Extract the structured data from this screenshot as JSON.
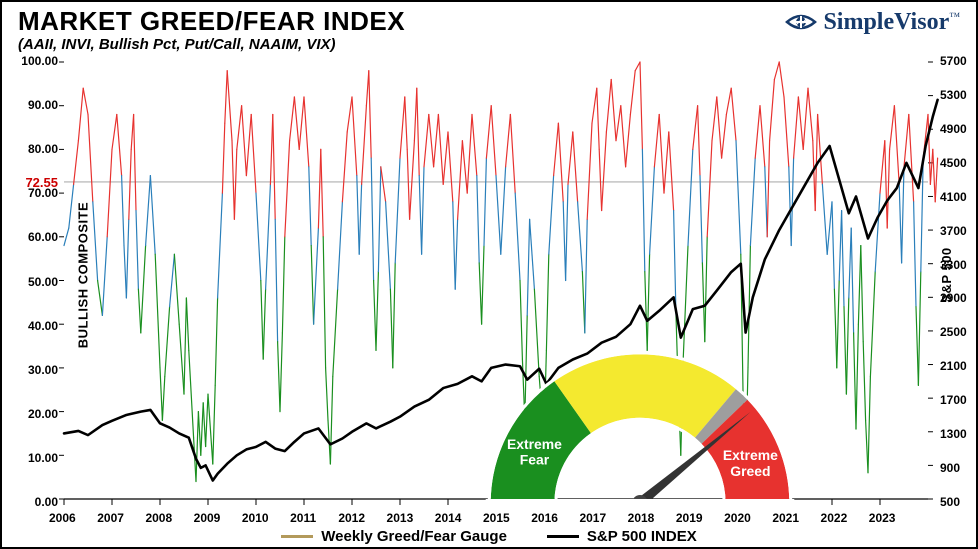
{
  "header": {
    "title": "MARKET GREED/FEAR INDEX",
    "subtitle": "(AAII, INVI, Bullish Pct, Put/Call, NAAIM, VIX)",
    "brand_name": "SimpleVisor"
  },
  "axes": {
    "x": {
      "label": "",
      "ticks": [
        "2006",
        "2007",
        "2008",
        "2009",
        "2010",
        "2011",
        "2012",
        "2013",
        "2014",
        "2015",
        "2016",
        "2017",
        "2018",
        "2019",
        "2020",
        "2021",
        "2022",
        "2023"
      ],
      "min": 2006,
      "max": 2024
    },
    "y_left": {
      "label": "BULLISH COMPOSITE",
      "min": 0,
      "max": 100,
      "ticks": [
        "0.00",
        "10.00",
        "20.00",
        "30.00",
        "40.00",
        "50.00",
        "60.00",
        "70.00",
        "80.00",
        "90.00",
        "100.00"
      ]
    },
    "y_right": {
      "label": "S&P 500",
      "min": 500,
      "max": 5700,
      "ticks": [
        "500",
        "900",
        "1300",
        "1700",
        "2100",
        "2500",
        "2900",
        "3300",
        "3700",
        "4100",
        "4500",
        "4900",
        "5300",
        "5700"
      ]
    }
  },
  "reference_line": {
    "value": 72.55,
    "label": "72.55",
    "color": "#cc0000"
  },
  "colors": {
    "greed_high": "#e7322f",
    "greed_mid": "#2a7fba",
    "greed_low": "#1a8f1f",
    "sp500": "#000000",
    "legend_gauge": "#b39a5b",
    "background": "#ffffff",
    "axis": "#000000",
    "brand": "#163a6b"
  },
  "gauge": {
    "segments": [
      {
        "color": "#1a8f1f",
        "label": "Extreme Fear"
      },
      {
        "color": "#f4e92f",
        "label": ""
      },
      {
        "color": "#9e9e9e",
        "label": ""
      },
      {
        "color": "#e7322f",
        "label": "Extreme Greed"
      }
    ],
    "needle_value": 0.78
  },
  "legend": {
    "items": [
      {
        "label": "Weekly Greed/Fear Gauge",
        "color": "#b39a5b"
      },
      {
        "label": "S&P 500 INDEX",
        "color": "#000000"
      }
    ]
  },
  "series": {
    "greed_fear": {
      "type": "line",
      "stroke_width": 1.2,
      "color_bands": [
        {
          "threshold": 70,
          "color": "#e7322f"
        },
        {
          "threshold": 50,
          "color": "#2a7fba"
        },
        {
          "threshold": 0,
          "color": "#1a8f1f"
        }
      ],
      "points": [
        [
          2006.0,
          58
        ],
        [
          2006.1,
          62
        ],
        [
          2006.2,
          72
        ],
        [
          2006.3,
          82
        ],
        [
          2006.4,
          94
        ],
        [
          2006.5,
          88
        ],
        [
          2006.6,
          68
        ],
        [
          2006.7,
          50
        ],
        [
          2006.8,
          42
        ],
        [
          2006.9,
          60
        ],
        [
          2007.0,
          80
        ],
        [
          2007.1,
          88
        ],
        [
          2007.2,
          74
        ],
        [
          2007.25,
          58
        ],
        [
          2007.3,
          46
        ],
        [
          2007.35,
          64
        ],
        [
          2007.4,
          80
        ],
        [
          2007.45,
          88
        ],
        [
          2007.5,
          66
        ],
        [
          2007.55,
          48
        ],
        [
          2007.6,
          38
        ],
        [
          2007.7,
          58
        ],
        [
          2007.8,
          74
        ],
        [
          2007.9,
          56
        ],
        [
          2008.0,
          30
        ],
        [
          2008.05,
          18
        ],
        [
          2008.1,
          28
        ],
        [
          2008.2,
          44
        ],
        [
          2008.3,
          56
        ],
        [
          2008.4,
          40
        ],
        [
          2008.5,
          24
        ],
        [
          2008.55,
          46
        ],
        [
          2008.6,
          34
        ],
        [
          2008.7,
          14
        ],
        [
          2008.75,
          4
        ],
        [
          2008.8,
          20
        ],
        [
          2008.85,
          10
        ],
        [
          2008.9,
          22
        ],
        [
          2008.95,
          12
        ],
        [
          2009.0,
          24
        ],
        [
          2009.1,
          8
        ],
        [
          2009.15,
          26
        ],
        [
          2009.2,
          46
        ],
        [
          2009.3,
          70
        ],
        [
          2009.35,
          86
        ],
        [
          2009.4,
          98
        ],
        [
          2009.5,
          82
        ],
        [
          2009.55,
          64
        ],
        [
          2009.6,
          80
        ],
        [
          2009.7,
          90
        ],
        [
          2009.8,
          74
        ],
        [
          2009.9,
          88
        ],
        [
          2010.0,
          70
        ],
        [
          2010.1,
          50
        ],
        [
          2010.15,
          32
        ],
        [
          2010.2,
          48
        ],
        [
          2010.3,
          72
        ],
        [
          2010.35,
          88
        ],
        [
          2010.4,
          64
        ],
        [
          2010.45,
          36
        ],
        [
          2010.5,
          20
        ],
        [
          2010.55,
          38
        ],
        [
          2010.6,
          60
        ],
        [
          2010.7,
          82
        ],
        [
          2010.8,
          92
        ],
        [
          2010.9,
          80
        ],
        [
          2011.0,
          92
        ],
        [
          2011.1,
          76
        ],
        [
          2011.15,
          58
        ],
        [
          2011.2,
          40
        ],
        [
          2011.3,
          62
        ],
        [
          2011.35,
          80
        ],
        [
          2011.4,
          60
        ],
        [
          2011.45,
          30
        ],
        [
          2011.5,
          18
        ],
        [
          2011.55,
          8
        ],
        [
          2011.6,
          28
        ],
        [
          2011.7,
          48
        ],
        [
          2011.8,
          68
        ],
        [
          2011.9,
          84
        ],
        [
          2012.0,
          92
        ],
        [
          2012.1,
          74
        ],
        [
          2012.15,
          56
        ],
        [
          2012.2,
          72
        ],
        [
          2012.3,
          90
        ],
        [
          2012.35,
          98
        ],
        [
          2012.4,
          78
        ],
        [
          2012.45,
          50
        ],
        [
          2012.5,
          34
        ],
        [
          2012.55,
          52
        ],
        [
          2012.6,
          76
        ],
        [
          2012.7,
          68
        ],
        [
          2012.8,
          48
        ],
        [
          2012.85,
          30
        ],
        [
          2012.9,
          54
        ],
        [
          2013.0,
          78
        ],
        [
          2013.1,
          92
        ],
        [
          2013.15,
          80
        ],
        [
          2013.2,
          64
        ],
        [
          2013.3,
          82
        ],
        [
          2013.35,
          94
        ],
        [
          2013.4,
          74
        ],
        [
          2013.45,
          56
        ],
        [
          2013.5,
          76
        ],
        [
          2013.6,
          88
        ],
        [
          2013.7,
          76
        ],
        [
          2013.8,
          88
        ],
        [
          2013.9,
          72
        ],
        [
          2014.0,
          84
        ],
        [
          2014.1,
          68
        ],
        [
          2014.15,
          48
        ],
        [
          2014.2,
          64
        ],
        [
          2014.3,
          82
        ],
        [
          2014.4,
          70
        ],
        [
          2014.5,
          88
        ],
        [
          2014.6,
          74
        ],
        [
          2014.65,
          54
        ],
        [
          2014.7,
          40
        ],
        [
          2014.75,
          58
        ],
        [
          2014.8,
          78
        ],
        [
          2014.9,
          90
        ],
        [
          2015.0,
          74
        ],
        [
          2015.1,
          56
        ],
        [
          2015.2,
          76
        ],
        [
          2015.3,
          88
        ],
        [
          2015.4,
          70
        ],
        [
          2015.5,
          50
        ],
        [
          2015.55,
          32
        ],
        [
          2015.6,
          18
        ],
        [
          2015.65,
          42
        ],
        [
          2015.7,
          64
        ],
        [
          2015.8,
          48
        ],
        [
          2015.9,
          28
        ],
        [
          2016.0,
          14
        ],
        [
          2016.05,
          34
        ],
        [
          2016.1,
          56
        ],
        [
          2016.2,
          74
        ],
        [
          2016.3,
          86
        ],
        [
          2016.4,
          68
        ],
        [
          2016.45,
          50
        ],
        [
          2016.5,
          72
        ],
        [
          2016.6,
          84
        ],
        [
          2016.7,
          68
        ],
        [
          2016.8,
          52
        ],
        [
          2016.85,
          38
        ],
        [
          2016.9,
          64
        ],
        [
          2017.0,
          86
        ],
        [
          2017.1,
          94
        ],
        [
          2017.15,
          80
        ],
        [
          2017.2,
          66
        ],
        [
          2017.3,
          84
        ],
        [
          2017.4,
          96
        ],
        [
          2017.5,
          82
        ],
        [
          2017.6,
          90
        ],
        [
          2017.7,
          76
        ],
        [
          2017.8,
          88
        ],
        [
          2017.9,
          98
        ],
        [
          2018.0,
          100
        ],
        [
          2018.05,
          80
        ],
        [
          2018.1,
          52
        ],
        [
          2018.15,
          34
        ],
        [
          2018.2,
          56
        ],
        [
          2018.3,
          76
        ],
        [
          2018.4,
          88
        ],
        [
          2018.5,
          70
        ],
        [
          2018.6,
          84
        ],
        [
          2018.7,
          66
        ],
        [
          2018.75,
          42
        ],
        [
          2018.8,
          24
        ],
        [
          2018.85,
          10
        ],
        [
          2018.9,
          32
        ],
        [
          2019.0,
          58
        ],
        [
          2019.1,
          80
        ],
        [
          2019.2,
          90
        ],
        [
          2019.25,
          74
        ],
        [
          2019.3,
          54
        ],
        [
          2019.35,
          36
        ],
        [
          2019.4,
          60
        ],
        [
          2019.5,
          82
        ],
        [
          2019.6,
          92
        ],
        [
          2019.7,
          78
        ],
        [
          2019.8,
          88
        ],
        [
          2019.9,
          94
        ],
        [
          2020.0,
          82
        ],
        [
          2020.1,
          56
        ],
        [
          2020.15,
          22
        ],
        [
          2020.2,
          6
        ],
        [
          2020.25,
          30
        ],
        [
          2020.3,
          58
        ],
        [
          2020.4,
          78
        ],
        [
          2020.5,
          90
        ],
        [
          2020.6,
          76
        ],
        [
          2020.65,
          60
        ],
        [
          2020.7,
          82
        ],
        [
          2020.8,
          96
        ],
        [
          2020.9,
          100
        ],
        [
          2021.0,
          92
        ],
        [
          2021.1,
          76
        ],
        [
          2021.15,
          58
        ],
        [
          2021.2,
          78
        ],
        [
          2021.3,
          92
        ],
        [
          2021.4,
          80
        ],
        [
          2021.5,
          94
        ],
        [
          2021.6,
          82
        ],
        [
          2021.65,
          66
        ],
        [
          2021.7,
          88
        ],
        [
          2021.8,
          72
        ],
        [
          2021.9,
          56
        ],
        [
          2022.0,
          68
        ],
        [
          2022.05,
          48
        ],
        [
          2022.1,
          30
        ],
        [
          2022.15,
          50
        ],
        [
          2022.2,
          66
        ],
        [
          2022.25,
          44
        ],
        [
          2022.3,
          24
        ],
        [
          2022.35,
          46
        ],
        [
          2022.4,
          62
        ],
        [
          2022.45,
          38
        ],
        [
          2022.5,
          16
        ],
        [
          2022.55,
          40
        ],
        [
          2022.6,
          58
        ],
        [
          2022.65,
          36
        ],
        [
          2022.7,
          18
        ],
        [
          2022.75,
          6
        ],
        [
          2022.8,
          28
        ],
        [
          2022.9,
          52
        ],
        [
          2023.0,
          70
        ],
        [
          2023.1,
          82
        ],
        [
          2023.15,
          62
        ],
        [
          2023.2,
          80
        ],
        [
          2023.3,
          90
        ],
        [
          2023.4,
          72
        ],
        [
          2023.45,
          54
        ],
        [
          2023.5,
          76
        ],
        [
          2023.6,
          88
        ],
        [
          2023.7,
          68
        ],
        [
          2023.75,
          44
        ],
        [
          2023.8,
          26
        ],
        [
          2023.85,
          52
        ],
        [
          2023.9,
          78
        ],
        [
          2024.0,
          88
        ],
        [
          2024.05,
          72
        ],
        [
          2024.1,
          80
        ],
        [
          2024.15,
          68
        ],
        [
          2024.2,
          78
        ]
      ]
    },
    "sp500": {
      "type": "line",
      "stroke_width": 2.6,
      "points": [
        [
          2006.0,
          1280
        ],
        [
          2006.3,
          1310
        ],
        [
          2006.5,
          1260
        ],
        [
          2006.8,
          1380
        ],
        [
          2007.0,
          1430
        ],
        [
          2007.3,
          1500
        ],
        [
          2007.6,
          1540
        ],
        [
          2007.8,
          1560
        ],
        [
          2008.0,
          1400
        ],
        [
          2008.2,
          1350
        ],
        [
          2008.4,
          1280
        ],
        [
          2008.6,
          1230
        ],
        [
          2008.75,
          980
        ],
        [
          2008.85,
          870
        ],
        [
          2008.95,
          900
        ],
        [
          2009.1,
          720
        ],
        [
          2009.2,
          800
        ],
        [
          2009.4,
          920
        ],
        [
          2009.6,
          1020
        ],
        [
          2009.8,
          1090
        ],
        [
          2010.0,
          1120
        ],
        [
          2010.2,
          1180
        ],
        [
          2010.4,
          1100
        ],
        [
          2010.6,
          1070
        ],
        [
          2010.8,
          1180
        ],
        [
          2011.0,
          1280
        ],
        [
          2011.3,
          1340
        ],
        [
          2011.55,
          1150
        ],
        [
          2011.8,
          1220
        ],
        [
          2012.0,
          1300
        ],
        [
          2012.3,
          1400
        ],
        [
          2012.5,
          1340
        ],
        [
          2012.8,
          1420
        ],
        [
          2013.0,
          1480
        ],
        [
          2013.3,
          1600
        ],
        [
          2013.6,
          1680
        ],
        [
          2013.9,
          1820
        ],
        [
          2014.2,
          1870
        ],
        [
          2014.5,
          1960
        ],
        [
          2014.7,
          1900
        ],
        [
          2014.9,
          2060
        ],
        [
          2015.2,
          2100
        ],
        [
          2015.5,
          2080
        ],
        [
          2015.65,
          1920
        ],
        [
          2015.9,
          2050
        ],
        [
          2016.05,
          1870
        ],
        [
          2016.3,
          2060
        ],
        [
          2016.6,
          2160
        ],
        [
          2016.9,
          2230
        ],
        [
          2017.2,
          2360
        ],
        [
          2017.5,
          2430
        ],
        [
          2017.8,
          2580
        ],
        [
          2018.0,
          2800
        ],
        [
          2018.15,
          2620
        ],
        [
          2018.4,
          2740
        ],
        [
          2018.7,
          2900
        ],
        [
          2018.85,
          2420
        ],
        [
          2019.1,
          2760
        ],
        [
          2019.35,
          2800
        ],
        [
          2019.6,
          2980
        ],
        [
          2019.9,
          3200
        ],
        [
          2020.1,
          3300
        ],
        [
          2020.2,
          2480
        ],
        [
          2020.35,
          2900
        ],
        [
          2020.6,
          3350
        ],
        [
          2020.9,
          3700
        ],
        [
          2021.1,
          3900
        ],
        [
          2021.4,
          4200
        ],
        [
          2021.7,
          4500
        ],
        [
          2021.95,
          4700
        ],
        [
          2022.15,
          4300
        ],
        [
          2022.35,
          3900
        ],
        [
          2022.5,
          4100
        ],
        [
          2022.75,
          3600
        ],
        [
          2022.95,
          3850
        ],
        [
          2023.15,
          4050
        ],
        [
          2023.35,
          4200
        ],
        [
          2023.55,
          4500
        ],
        [
          2023.8,
          4200
        ],
        [
          2023.95,
          4700
        ],
        [
          2024.1,
          5050
        ],
        [
          2024.2,
          5250
        ]
      ]
    }
  }
}
